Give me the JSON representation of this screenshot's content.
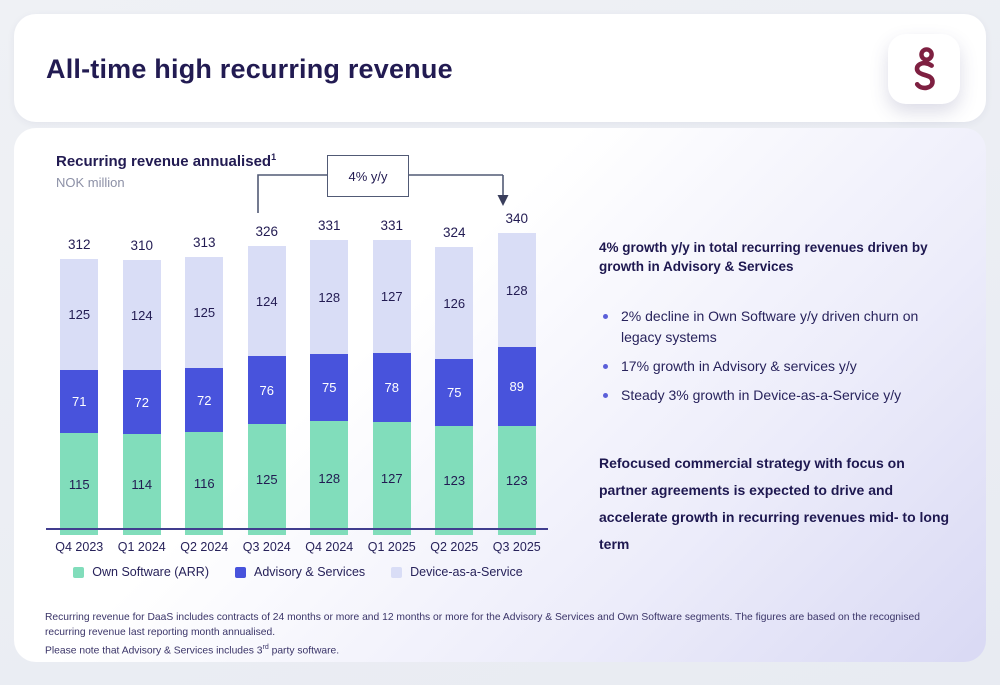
{
  "header": {
    "title": "All-time high recurring revenue"
  },
  "logo": {
    "color": "#7E2041"
  },
  "chart_data": {
    "type": "bar",
    "stacked": true,
    "title": "Recurring revenue annualised",
    "title_superscript": "1",
    "subtitle": "NOK million",
    "categories": [
      "Q4 2023",
      "Q1 2024",
      "Q2 2024",
      "Q3 2024",
      "Q4 2024",
      "Q1 2025",
      "Q2 2025",
      "Q3 2025"
    ],
    "series": [
      {
        "name": "Own Software (ARR)",
        "color": "#81DDBB",
        "values": [
          115,
          114,
          116,
          125,
          128,
          127,
          123,
          123
        ]
      },
      {
        "name": "Advisory & Services",
        "color": "#4853DC",
        "values": [
          71,
          72,
          72,
          76,
          75,
          78,
          75,
          89
        ]
      },
      {
        "name": "Device-as-a-Service",
        "color": "#D9DDF6",
        "values": [
          125,
          124,
          125,
          124,
          128,
          127,
          126,
          128
        ]
      }
    ],
    "totals": [
      312,
      310,
      313,
      326,
      331,
      331,
      324,
      340
    ],
    "annotation": {
      "label": "4% y/y",
      "from_category": "Q3 2024",
      "to_category": "Q3 2025"
    },
    "legend_position": "bottom",
    "grid": false
  },
  "insights": {
    "heading_lines": [
      "4% growth y/y in total recurring revenues driven by",
      "growth in Advisory & Services"
    ],
    "bullets": [
      {
        "lines": [
          "2% decline in Own Software y/y driven churn on",
          "legacy systems"
        ]
      },
      {
        "lines": [
          "17% growth in Advisory & services y/y"
        ]
      },
      {
        "lines": [
          "Steady 3% growth in Device-as-a-Service y/y"
        ]
      }
    ],
    "outlook_lines": [
      "Refocused commercial strategy with focus on",
      "partner agreements is expected to drive and",
      "accelerate growth in recurring revenues mid- to long",
      "term"
    ]
  },
  "footnote": {
    "line1": "Recurring revenue for DaaS includes contracts of 24 months or more and 12 months or more for the Advisory & Services and Own Software segments. The figures are based on the recognised recurring revenue last reporting month annualised.",
    "line2_pre": "Please note that Advisory & Services includes 3",
    "line2_sup": "rd",
    "line2_post": " party software."
  }
}
